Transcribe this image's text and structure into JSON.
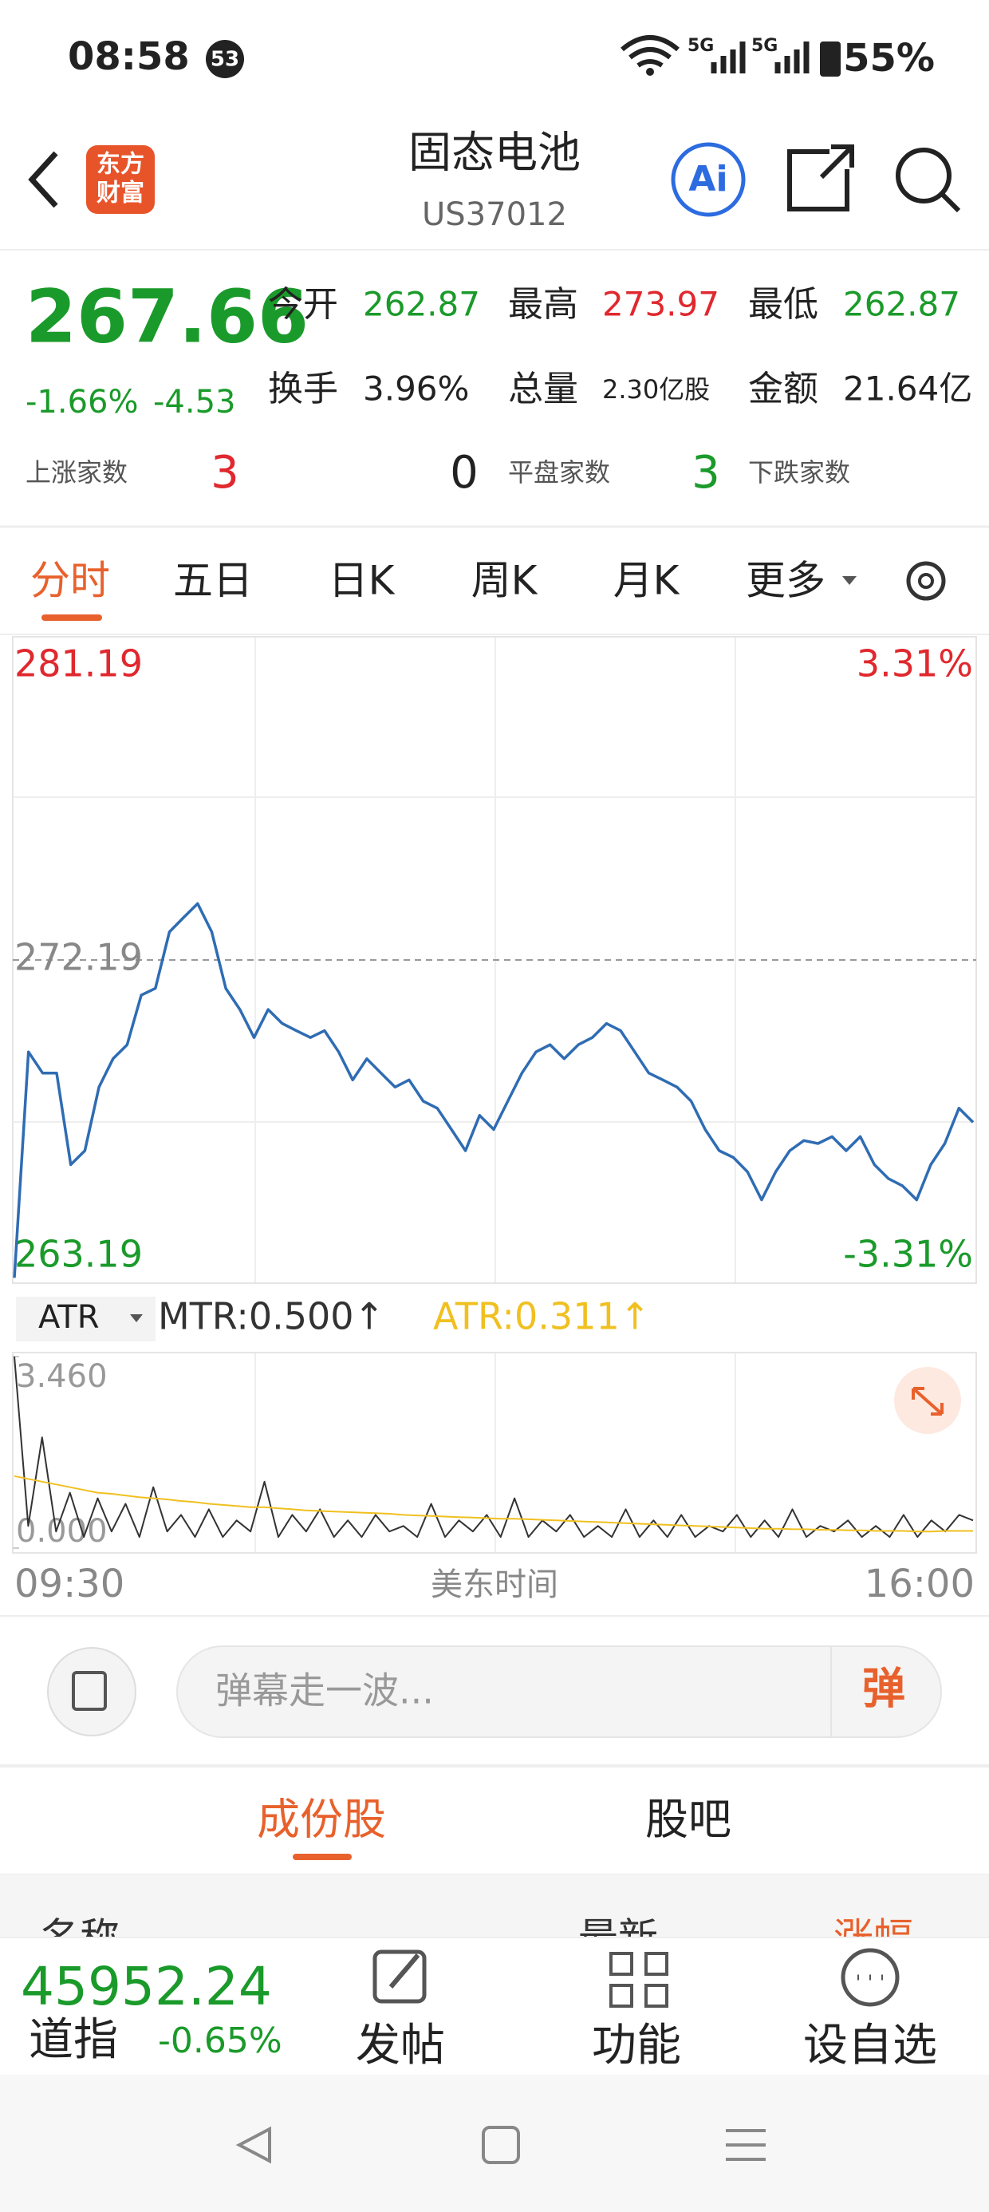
{
  "status_bar": {
    "time": "08:58",
    "badge": "53",
    "network_1": "5G",
    "network_2": "5G",
    "battery": "55%"
  },
  "header": {
    "logo": [
      "东方",
      "财富"
    ],
    "title": "固态电池",
    "code": "US37012",
    "ai": "Ai"
  },
  "quote": {
    "price": "267.66",
    "change_pct": "-1.66%",
    "change": "-4.53",
    "stats": [
      [
        {
          "label": "今开",
          "value": "262.87"
        },
        {
          "label": "最高",
          "value": "273.97"
        },
        {
          "label": "最低",
          "value": "262.87"
        }
      ],
      [
        {
          "label": "换手",
          "value": "3.96%"
        },
        {
          "label": "总量",
          "value": "2.30亿股"
        },
        {
          "label": "金额",
          "value": "21.64亿"
        }
      ]
    ],
    "breadth": [
      {
        "label": "上涨家数",
        "value": "3"
      },
      {
        "label": "平盘家数",
        "value": "0"
      },
      {
        "label": "下跌家数",
        "value": "3"
      }
    ]
  },
  "tabs": [
    "分时",
    "五日",
    "日K",
    "周K",
    "月K",
    "更多"
  ],
  "chart_data": [
    {
      "type": "line",
      "color": "#2f6cb3",
      "ylim": [
        263.19,
        281.19
      ],
      "yticks": [
        281.19,
        272.19,
        263.19
      ],
      "y2lim": [
        -3.31,
        3.31
      ],
      "y2ticks": [
        {
          "value": 3.31,
          "label": "3.31%"
        },
        {
          "value": -3.31,
          "label": "-3.31%"
        }
      ],
      "values": [
        263.34,
        269.63,
        269.04,
        269.04,
        266.49,
        266.88,
        268.65,
        269.44,
        269.83,
        271.21,
        271.4,
        272.97,
        273.37,
        273.76,
        272.97,
        271.4,
        270.81,
        270.03,
        270.81,
        270.42,
        270.22,
        270.03,
        270.22,
        269.63,
        268.85,
        269.44,
        269.04,
        268.65,
        268.85,
        268.26,
        268.06,
        267.47,
        266.88,
        267.86,
        267.47,
        268.26,
        269.04,
        269.63,
        269.83,
        269.44,
        269.83,
        270.03,
        270.42,
        270.22,
        269.63,
        269.04,
        268.85,
        268.65,
        268.26,
        267.47,
        266.88,
        266.69,
        266.29,
        265.51,
        266.29,
        266.88,
        267.16,
        267.08,
        267.27,
        266.88,
        267.27,
        266.49,
        266.1,
        265.9,
        265.51,
        266.49,
        267.08,
        268.06,
        267.67
      ]
    },
    {
      "type": "line",
      "indicator": "ATR",
      "ylim": [
        0,
        3.46
      ],
      "yticks": [
        {
          "value": 3.46,
          "label": "3.460"
        },
        {
          "value": 0,
          "label": "0.000"
        }
      ],
      "xticks": [
        "09:30",
        "16:00"
      ],
      "xlabel": "美东时间",
      "series": [
        {
          "name": "MTR:0.500↑",
          "color": "#333333",
          "values": [
            3.46,
            0.4,
            2.0,
            0.3,
            1.0,
            0.2,
            0.9,
            0.3,
            0.8,
            0.2,
            1.1,
            0.3,
            0.6,
            0.2,
            0.7,
            0.2,
            0.5,
            0.3,
            1.2,
            0.2,
            0.6,
            0.3,
            0.7,
            0.2,
            0.5,
            0.2,
            0.6,
            0.3,
            0.4,
            0.2,
            0.8,
            0.2,
            0.5,
            0.3,
            0.6,
            0.2,
            0.9,
            0.2,
            0.5,
            0.3,
            0.6,
            0.2,
            0.4,
            0.2,
            0.7,
            0.2,
            0.5,
            0.2,
            0.6,
            0.2,
            0.4,
            0.3,
            0.6,
            0.2,
            0.5,
            0.2,
            0.7,
            0.2,
            0.4,
            0.3,
            0.5,
            0.2,
            0.4,
            0.2,
            0.6,
            0.2,
            0.5,
            0.3,
            0.6,
            0.5
          ]
        },
        {
          "name": "ATR:0.311↑",
          "color": "#f0c020",
          "values": [
            1.3,
            1.25,
            1.2,
            1.15,
            1.1,
            1.05,
            1.0,
            0.98,
            0.95,
            0.92,
            0.9,
            0.88,
            0.85,
            0.83,
            0.8,
            0.78,
            0.76,
            0.74,
            0.74,
            0.72,
            0.7,
            0.68,
            0.67,
            0.66,
            0.65,
            0.64,
            0.63,
            0.62,
            0.6,
            0.59,
            0.58,
            0.57,
            0.56,
            0.55,
            0.54,
            0.53,
            0.53,
            0.52,
            0.51,
            0.5,
            0.49,
            0.48,
            0.47,
            0.46,
            0.45,
            0.44,
            0.43,
            0.42,
            0.41,
            0.4,
            0.39,
            0.38,
            0.37,
            0.36,
            0.35,
            0.35,
            0.34,
            0.34,
            0.33,
            0.33,
            0.32,
            0.32,
            0.31,
            0.31,
            0.31,
            0.3,
            0.3,
            0.31,
            0.31,
            0.31
          ]
        }
      ]
    }
  ],
  "comment_bar": {
    "placeholder": "弹幕走一波...",
    "button": "弹"
  },
  "section_tabs": [
    "成份股",
    "股吧"
  ],
  "list_header": [
    "名称",
    "最新",
    "涨幅"
  ],
  "bottom_bar": {
    "index_value": "45952.24",
    "index_name": "道指",
    "index_change": "-0.65%",
    "actions": [
      "发帖",
      "功能",
      "设自选"
    ]
  }
}
